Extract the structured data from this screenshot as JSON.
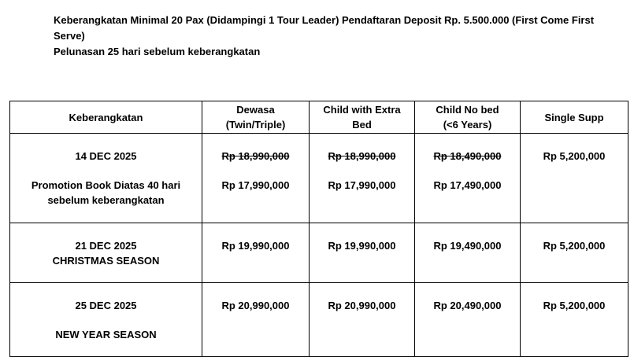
{
  "intro": {
    "line1": "Keberangkatan Minimal 20 Pax (Didampingi 1 Tour Leader) Pendaftaran Deposit Rp. 5.500.000 (First Come First Serve)",
    "line2": "Pelunasan 25 hari sebelum keberangkatan"
  },
  "table": {
    "headers": [
      [
        "Keberangkatan"
      ],
      [
        "Dewasa",
        "(Twin/Triple)"
      ],
      [
        "Child with Extra",
        "Bed"
      ],
      [
        "Child No bed",
        "(<6 Years)"
      ],
      [
        "Single Supp"
      ]
    ],
    "rows": [
      {
        "date": "14 DEC  2025",
        "note": "Promotion Book Diatas 40 hari sebelum keberangkatan",
        "old_prices": [
          "Rp 18,990,000",
          "Rp 18,990,000",
          "Rp 18,490,000"
        ],
        "prices": [
          "Rp 17,990,000",
          "Rp 17,990,000",
          "Rp 17,490,000"
        ],
        "single": "Rp 5,200,000"
      },
      {
        "date": "21 DEC 2025",
        "note": "CHRISTMAS SEASON",
        "prices": [
          "Rp 19,990,000",
          "Rp 19,990,000",
          "Rp 19,490,000"
        ],
        "single": "Rp 5,200,000"
      },
      {
        "date": "25 DEC 2025",
        "note": "NEW YEAR SEASON",
        "prices": [
          "Rp 20,990,000",
          "Rp 20,990,000",
          "Rp 20,490,000"
        ],
        "single": "Rp 5,200,000"
      }
    ]
  }
}
